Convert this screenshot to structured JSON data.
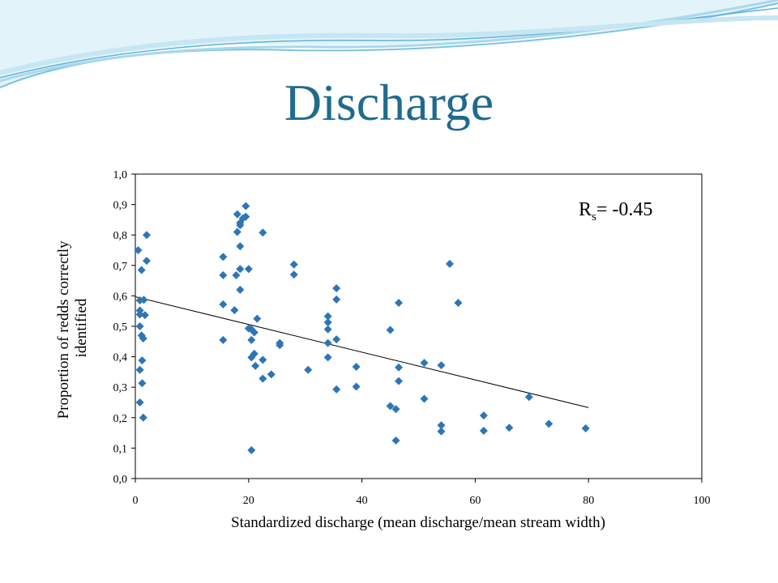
{
  "slide": {
    "title": "Discharge"
  },
  "colors": {
    "title": "#1f6b8e",
    "marker": "#2e75b6",
    "wave_light": "#cfe9f5",
    "wave_dark": "#5fb3d6"
  },
  "chart_data": {
    "type": "scatter",
    "xlabel": "Standardized discharge  (mean discharge/mean stream width)",
    "ylabel_lines": [
      "Proportion of redds correctly",
      "identified"
    ],
    "xlim": [
      0,
      100
    ],
    "ylim": [
      0,
      1.0
    ],
    "x_ticks": [
      "0",
      "20",
      "40",
      "60",
      "80",
      "100"
    ],
    "y_ticks": [
      "0,0",
      "0,1",
      "0,2",
      "0,3",
      "0,4",
      "0,5",
      "0,6",
      "0,7",
      "0,8",
      "0,9",
      "1,0"
    ],
    "grid": false,
    "annotation": {
      "main": "R",
      "sub": "s",
      "rest": "= -0.45"
    },
    "trendline": {
      "x": [
        0,
        80
      ],
      "y": [
        0.597,
        0.233
      ]
    },
    "points": [
      {
        "x": 0.5,
        "y": 0.75
      },
      {
        "x": 0.8,
        "y": 0.585
      },
      {
        "x": 0.8,
        "y": 0.552
      },
      {
        "x": 0.8,
        "y": 0.539
      },
      {
        "x": 0.8,
        "y": 0.5
      },
      {
        "x": 0.8,
        "y": 0.357
      },
      {
        "x": 0.8,
        "y": 0.25
      },
      {
        "x": 1.1,
        "y": 0.685
      },
      {
        "x": 1.1,
        "y": 0.47
      },
      {
        "x": 1.2,
        "y": 0.388
      },
      {
        "x": 1.2,
        "y": 0.313
      },
      {
        "x": 1.4,
        "y": 0.46
      },
      {
        "x": 1.4,
        "y": 0.2
      },
      {
        "x": 1.5,
        "y": 0.587
      },
      {
        "x": 1.7,
        "y": 0.537
      },
      {
        "x": 2.0,
        "y": 0.715
      },
      {
        "x": 2.0,
        "y": 0.8
      },
      {
        "x": 15.5,
        "y": 0.728
      },
      {
        "x": 15.5,
        "y": 0.668
      },
      {
        "x": 15.5,
        "y": 0.572
      },
      {
        "x": 15.5,
        "y": 0.455
      },
      {
        "x": 17.5,
        "y": 0.553
      },
      {
        "x": 17.8,
        "y": 0.668
      },
      {
        "x": 18.0,
        "y": 0.868
      },
      {
        "x": 18.0,
        "y": 0.81
      },
      {
        "x": 18.5,
        "y": 0.84
      },
      {
        "x": 18.5,
        "y": 0.832
      },
      {
        "x": 18.5,
        "y": 0.763
      },
      {
        "x": 18.5,
        "y": 0.688
      },
      {
        "x": 18.5,
        "y": 0.62
      },
      {
        "x": 19.0,
        "y": 0.855
      },
      {
        "x": 19.5,
        "y": 0.895
      },
      {
        "x": 19.5,
        "y": 0.86
      },
      {
        "x": 20.0,
        "y": 0.688
      },
      {
        "x": 20.0,
        "y": 0.493
      },
      {
        "x": 20.5,
        "y": 0.49
      },
      {
        "x": 20.5,
        "y": 0.455
      },
      {
        "x": 20.5,
        "y": 0.398
      },
      {
        "x": 20.5,
        "y": 0.093
      },
      {
        "x": 21.0,
        "y": 0.48
      },
      {
        "x": 21.0,
        "y": 0.41
      },
      {
        "x": 21.2,
        "y": 0.37
      },
      {
        "x": 21.5,
        "y": 0.525
      },
      {
        "x": 22.5,
        "y": 0.808
      },
      {
        "x": 22.5,
        "y": 0.39
      },
      {
        "x": 22.5,
        "y": 0.328
      },
      {
        "x": 24.0,
        "y": 0.342
      },
      {
        "x": 25.5,
        "y": 0.445
      },
      {
        "x": 25.5,
        "y": 0.438
      },
      {
        "x": 28.0,
        "y": 0.703
      },
      {
        "x": 28.0,
        "y": 0.67
      },
      {
        "x": 30.5,
        "y": 0.357
      },
      {
        "x": 34.0,
        "y": 0.533
      },
      {
        "x": 34.0,
        "y": 0.513
      },
      {
        "x": 34.0,
        "y": 0.49
      },
      {
        "x": 34.0,
        "y": 0.445
      },
      {
        "x": 34.0,
        "y": 0.398
      },
      {
        "x": 35.5,
        "y": 0.625
      },
      {
        "x": 35.5,
        "y": 0.588
      },
      {
        "x": 35.5,
        "y": 0.457
      },
      {
        "x": 35.5,
        "y": 0.293
      },
      {
        "x": 39.0,
        "y": 0.367
      },
      {
        "x": 39.0,
        "y": 0.302
      },
      {
        "x": 45.0,
        "y": 0.488
      },
      {
        "x": 45.0,
        "y": 0.238
      },
      {
        "x": 46.0,
        "y": 0.228
      },
      {
        "x": 46.0,
        "y": 0.125
      },
      {
        "x": 46.5,
        "y": 0.577
      },
      {
        "x": 46.5,
        "y": 0.365
      },
      {
        "x": 46.5,
        "y": 0.32
      },
      {
        "x": 51.0,
        "y": 0.38
      },
      {
        "x": 51.0,
        "y": 0.262
      },
      {
        "x": 54.0,
        "y": 0.372
      },
      {
        "x": 54.0,
        "y": 0.175
      },
      {
        "x": 54.0,
        "y": 0.155
      },
      {
        "x": 55.5,
        "y": 0.705
      },
      {
        "x": 57.0,
        "y": 0.577
      },
      {
        "x": 61.5,
        "y": 0.207
      },
      {
        "x": 61.5,
        "y": 0.157
      },
      {
        "x": 66.0,
        "y": 0.167
      },
      {
        "x": 69.5,
        "y": 0.268
      },
      {
        "x": 73.0,
        "y": 0.18
      },
      {
        "x": 79.5,
        "y": 0.165
      }
    ]
  }
}
